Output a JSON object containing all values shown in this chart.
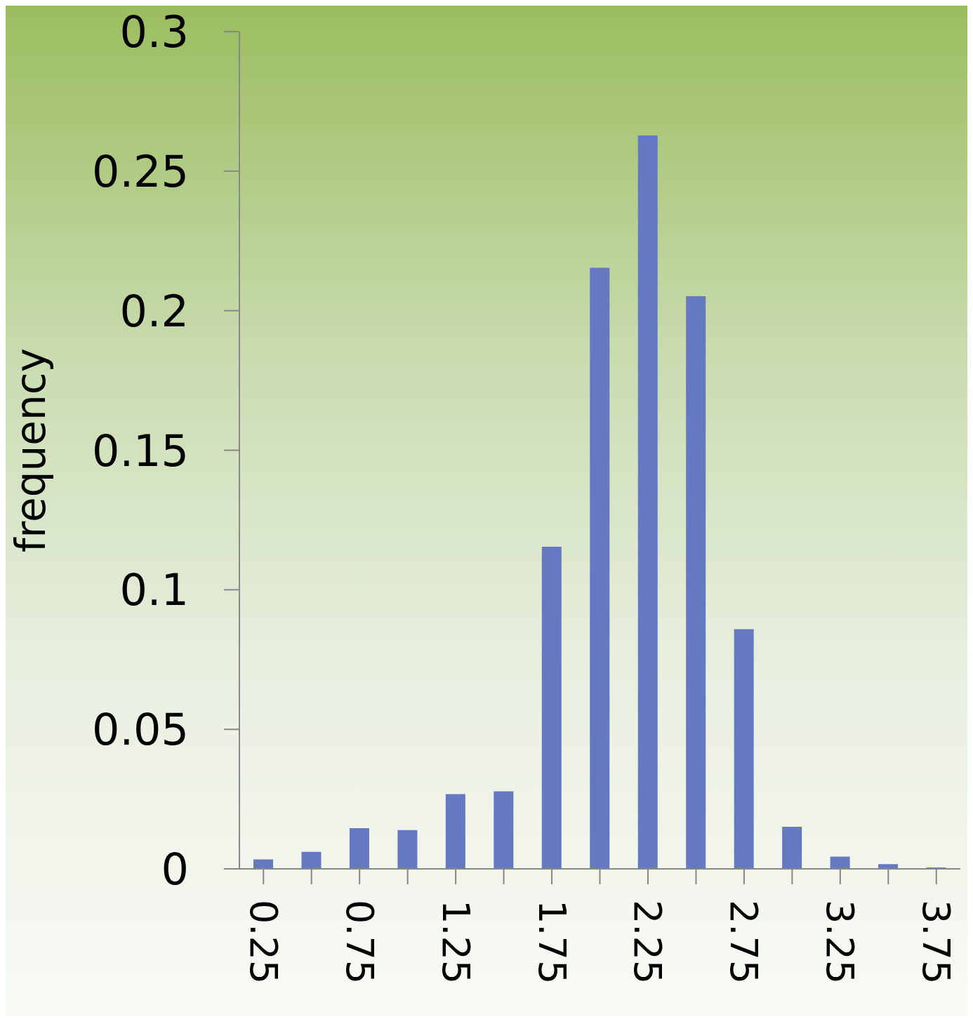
{
  "chart_data": {
    "type": "bar",
    "ylabel": "frequency",
    "categories": [
      "0.25",
      null,
      "0.75",
      null,
      "1.25",
      null,
      "1.75",
      null,
      "2.25",
      null,
      "2.75",
      null,
      "3.25",
      null,
      "3.75"
    ],
    "values": [
      0.0034,
      0.0061,
      0.0146,
      0.0139,
      0.0268,
      0.0278,
      0.1154,
      0.2154,
      0.2628,
      0.2052,
      0.0859,
      0.0151,
      0.0044,
      0.0017,
      0.0005
    ],
    "color": "#6479c2",
    "ylim": [
      0,
      0.3
    ],
    "yticks": [
      0,
      0.05,
      0.1,
      0.15,
      0.2,
      0.25,
      0.3
    ],
    "grid": false
  }
}
